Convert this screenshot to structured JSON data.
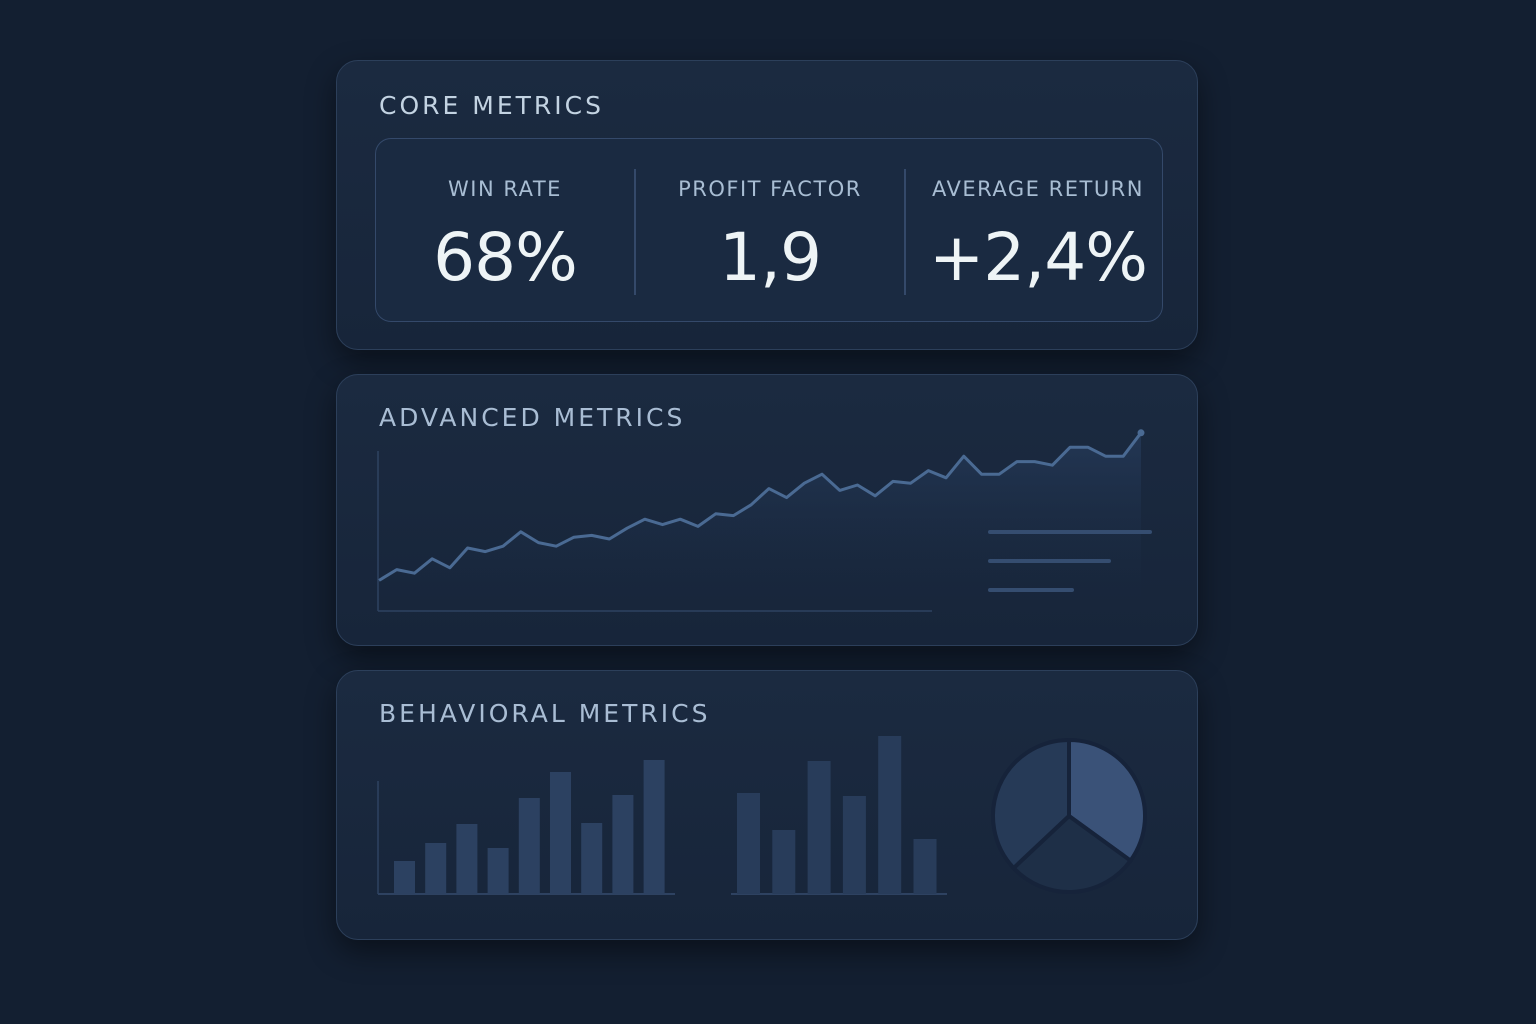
{
  "core": {
    "title": "CORE METRICS",
    "metrics": [
      {
        "label": "WIN  RATE",
        "value": "68%"
      },
      {
        "label": "PROFIT FACTOR",
        "value": "1,9"
      },
      {
        "label": "AVERAGE RETURN",
        "value": "+2,4%"
      }
    ]
  },
  "advanced": {
    "title": "ADVANCED METRICS"
  },
  "behavioral": {
    "title": "BEHAVIORAL METRICS"
  },
  "colors": {
    "background": "#131f31",
    "card": "#1b2a40",
    "line": "#4a6a93",
    "bar": "#2c4161",
    "pie": [
      "#3a5278",
      "#1e2f47",
      "#263a57"
    ]
  },
  "chart_data": [
    {
      "type": "area",
      "values": [
        17,
        23,
        21,
        29,
        24,
        35,
        33,
        36,
        44,
        38,
        36,
        41,
        42,
        40,
        46,
        51,
        48,
        51,
        47,
        54,
        53,
        59,
        68,
        63,
        71,
        76,
        67,
        70,
        64,
        72,
        71,
        78,
        74,
        86,
        76,
        76,
        83,
        83,
        81,
        91,
        91,
        86,
        86,
        99
      ],
      "legend_placeholder_lines": 3,
      "grid": false
    },
    {
      "type": "bar",
      "values": [
        33,
        51,
        70,
        46,
        96,
        122,
        71,
        99,
        134
      ]
    },
    {
      "type": "bar",
      "values": [
        101,
        64,
        133,
        98,
        158,
        55
      ]
    },
    {
      "type": "pie",
      "values": [
        35,
        28,
        37
      ]
    }
  ]
}
